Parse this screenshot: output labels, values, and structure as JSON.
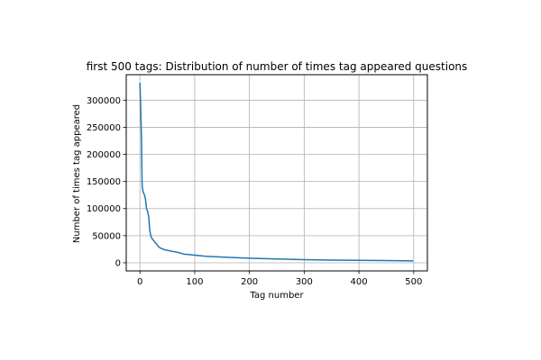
{
  "chart_data": {
    "type": "line",
    "title": "first 500 tags: Distribution of number of times tag appeared questions",
    "xlabel": "Tag number",
    "ylabel": "Number of times tag appeared",
    "xlim": [
      -25,
      525
    ],
    "ylim": [
      -15000,
      347000
    ],
    "xticks": [
      0,
      100,
      200,
      300,
      400,
      500
    ],
    "yticks": [
      0,
      50000,
      100000,
      150000,
      200000,
      250000,
      300000
    ],
    "grid": true,
    "line_color": "#1f77b4",
    "series": [
      {
        "x": [
          0,
          1,
          2,
          3,
          4,
          5,
          6,
          8,
          10,
          12,
          14,
          16,
          18,
          20,
          22,
          25,
          28,
          30,
          33,
          36,
          40,
          45,
          50,
          55,
          60,
          70,
          80,
          90,
          100,
          110,
          120,
          150,
          200,
          250,
          300,
          350,
          400,
          450,
          499
        ],
        "y": [
          332000,
          300000,
          260000,
          220000,
          143000,
          135000,
          130000,
          126000,
          118000,
          100000,
          95000,
          85000,
          60000,
          49000,
          45000,
          41000,
          37000,
          35000,
          31000,
          28000,
          26000,
          24000,
          23000,
          22000,
          21000,
          19000,
          16000,
          15000,
          14000,
          13000,
          12000,
          10500,
          8500,
          7000,
          5800,
          5000,
          4500,
          4000,
          3500
        ]
      }
    ]
  }
}
